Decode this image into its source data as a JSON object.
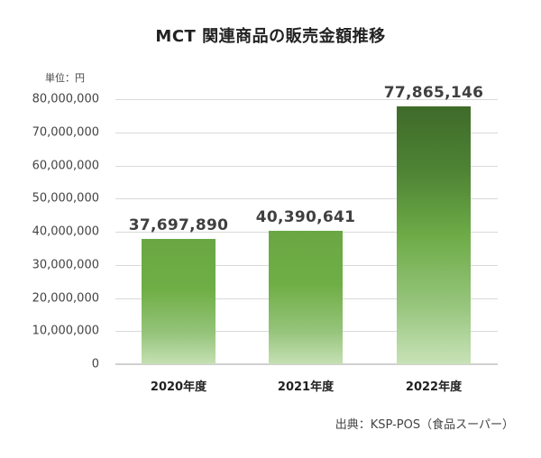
{
  "chart_data": {
    "type": "bar",
    "title": "MCT 関連商品の販売金額推移",
    "unit_label": "単位：円",
    "xlabel": "",
    "ylabel": "",
    "categories": [
      "2020年度",
      "2021年度",
      "2022年度"
    ],
    "values": [
      37697890,
      40390641,
      77865146
    ],
    "value_labels": [
      "37,697,890",
      "40,390,641",
      "77,865,146"
    ],
    "ylim": [
      0,
      80000000
    ],
    "yticks": [
      0,
      10000000,
      20000000,
      30000000,
      40000000,
      50000000,
      60000000,
      70000000,
      80000000
    ],
    "ytick_labels": [
      "0",
      "10,000,000",
      "20,000,000",
      "30,000,000",
      "40,000,000",
      "50,000,000",
      "60,000,000",
      "70,000,000",
      "80,000,000"
    ],
    "grid": true,
    "legend": null,
    "source": "出典：KSP-POS（食品スーパー）",
    "colors": {
      "bar_2020": "#6fae45",
      "bar_2021": "#6fae45",
      "bar_2022_top": "#3f6b2a",
      "bar_bottom": "#c5e0b4"
    }
  }
}
